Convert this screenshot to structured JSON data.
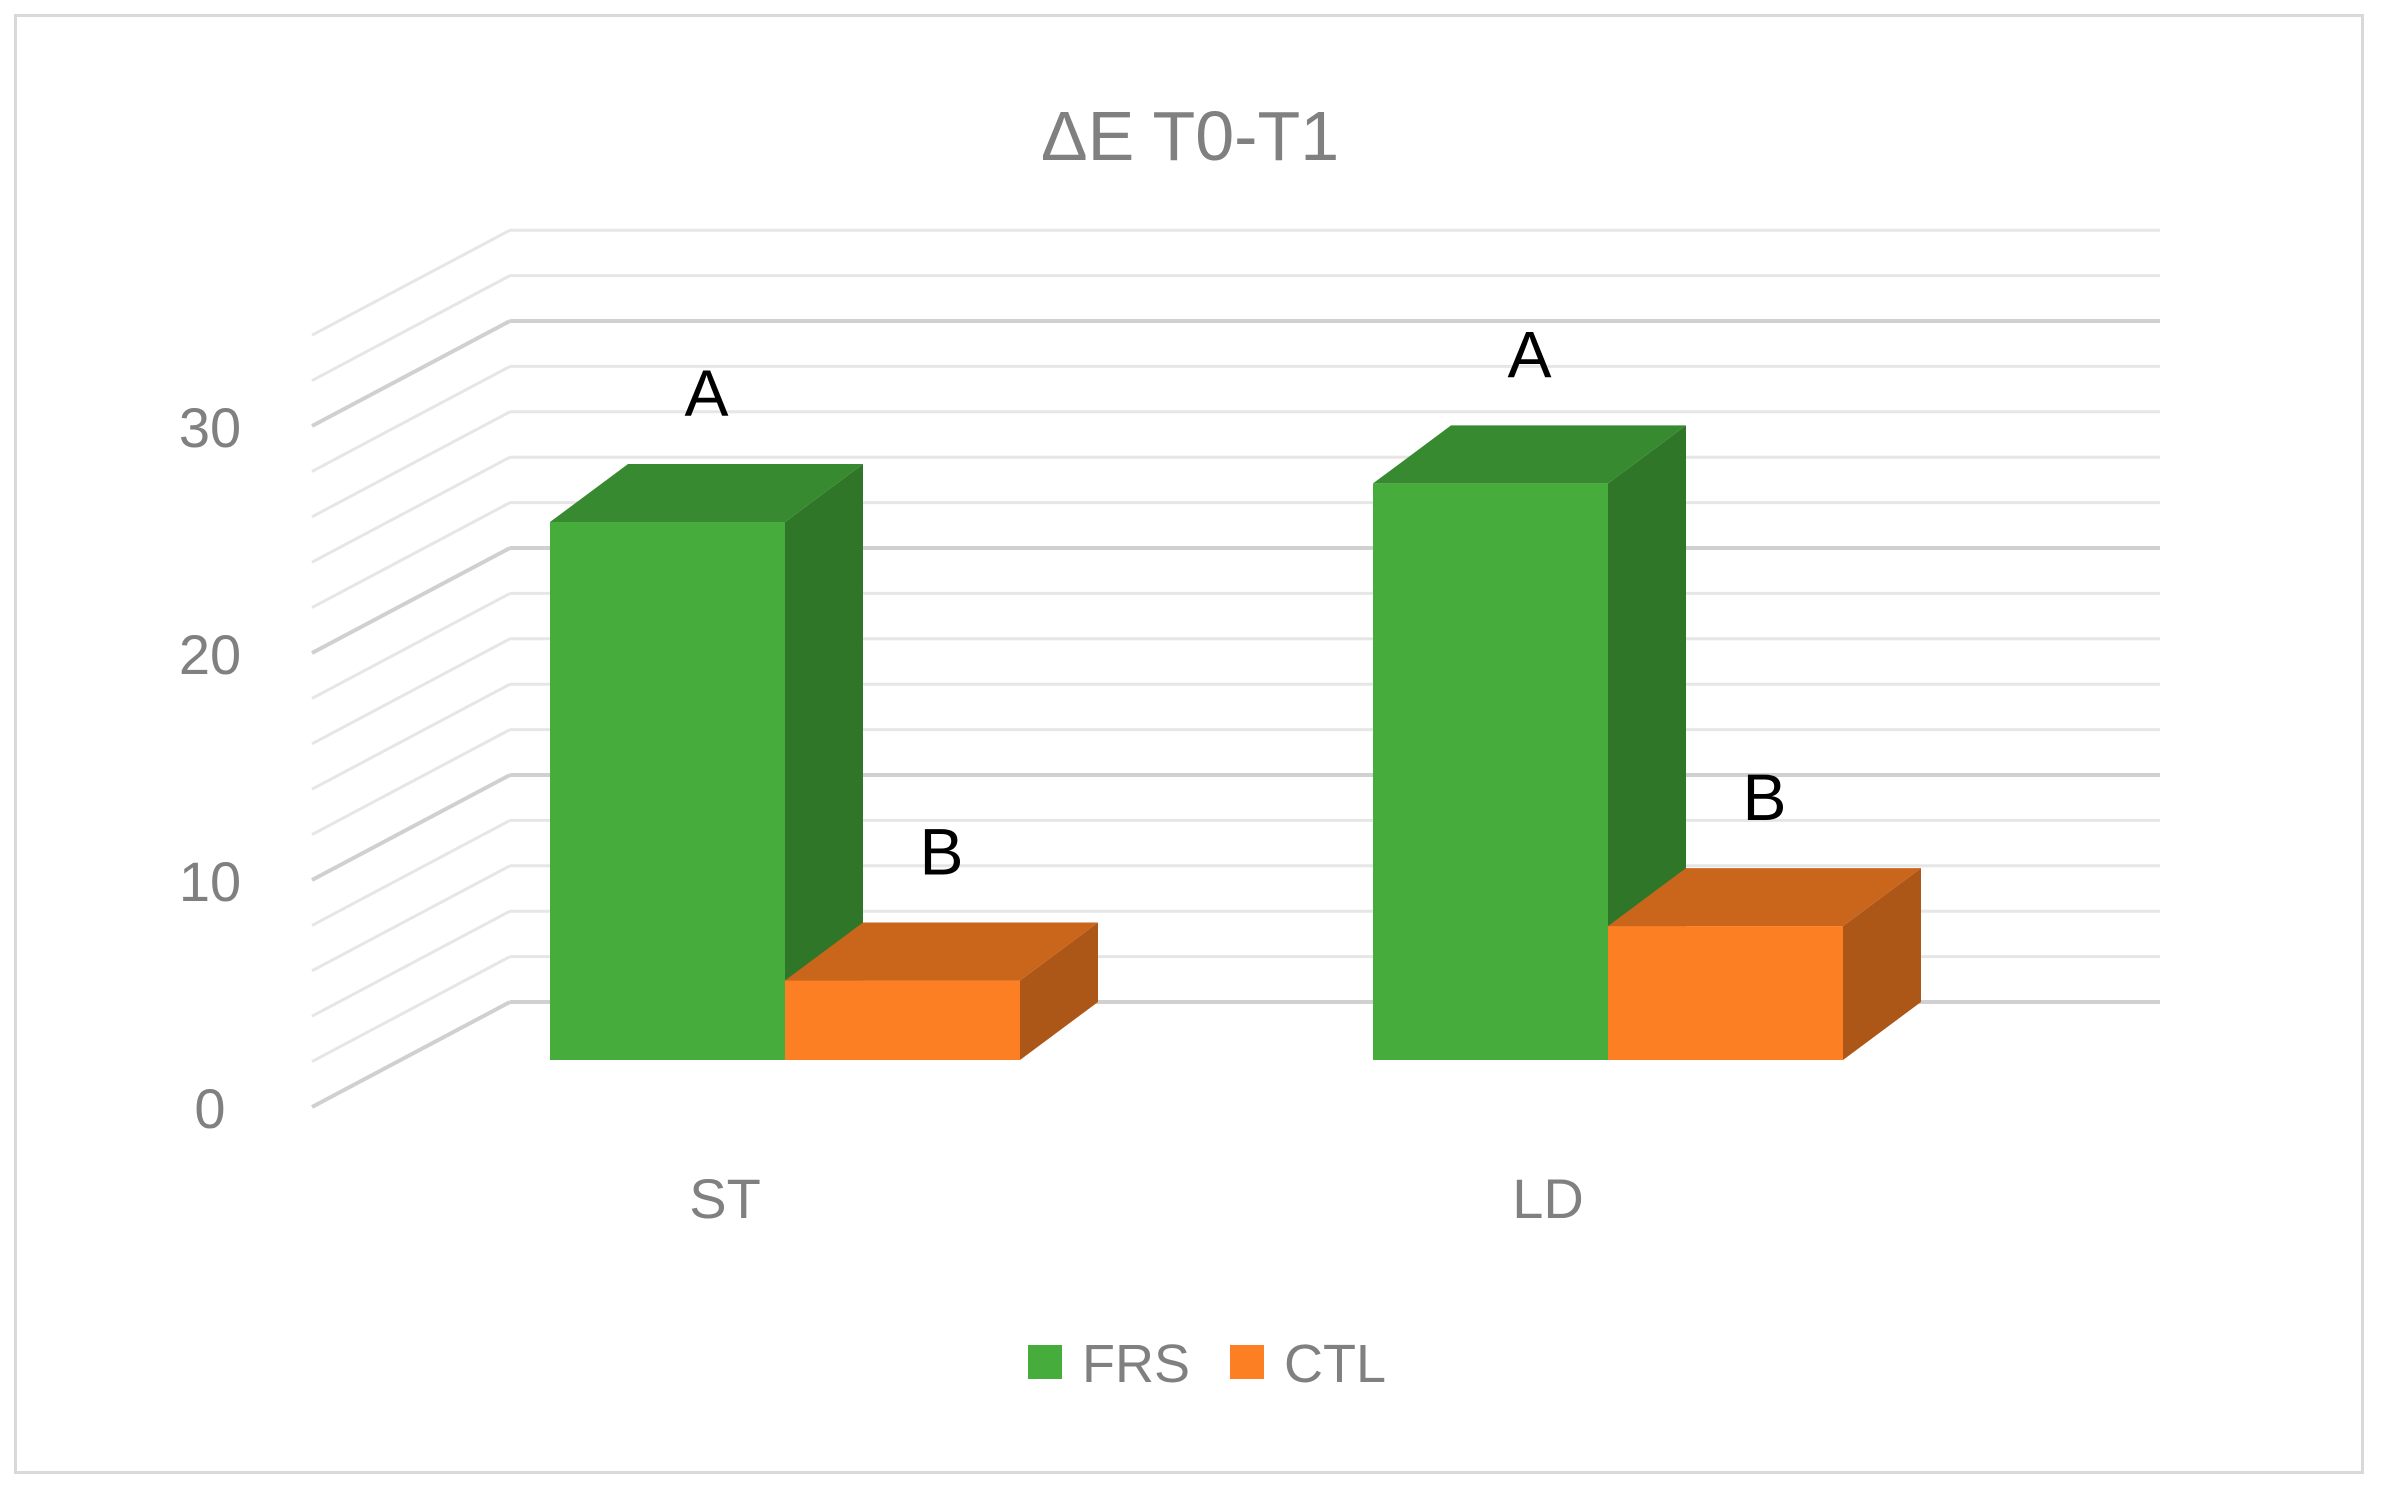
{
  "chart_data": {
    "type": "bar",
    "title": "ΔE T0-T1",
    "xlabel": "",
    "ylabel": "",
    "categories": [
      "ST",
      "LD"
    ],
    "series": [
      {
        "name": "FRS",
        "values": [
          23.7,
          25.4
        ],
        "color": "#46ad3c",
        "labels": [
          "A",
          "A"
        ]
      },
      {
        "name": "CTL",
        "values": [
          3.5,
          5.9
        ],
        "color": "#fd7f23",
        "labels": [
          "B",
          "B"
        ]
      }
    ],
    "yticks": [
      "0",
      "10",
      "20",
      "30"
    ],
    "ylim": [
      0,
      35
    ],
    "grid": true,
    "legend": "bottom",
    "style": "3d-clustered-column"
  }
}
